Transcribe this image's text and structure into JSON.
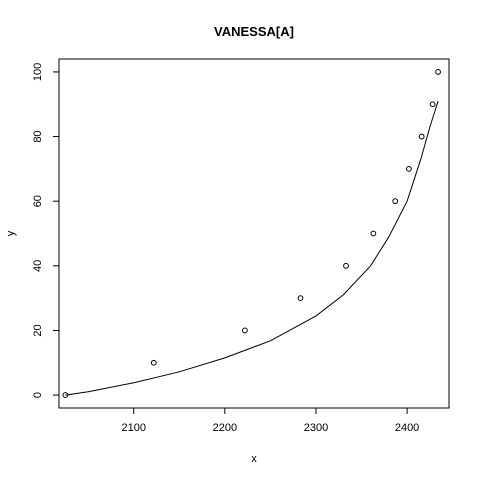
{
  "chart_data": {
    "type": "scatter",
    "title": "VANESSA[A]",
    "xlabel": "x",
    "ylabel": "y",
    "xlim": [
      2018,
      2446
    ],
    "ylim": [
      -4,
      104
    ],
    "x_ticks": [
      "2100",
      "2200",
      "2300",
      "2400"
    ],
    "y_ticks": [
      "0",
      "20",
      "40",
      "60",
      "80",
      "100"
    ],
    "grid": false,
    "legend": "none",
    "series": [
      {
        "kind": "points",
        "x": [
          2025,
          2122,
          2222,
          2283,
          2333,
          2363,
          2387,
          2402,
          2416,
          2428,
          2434
        ],
        "y": [
          0,
          10,
          20,
          30,
          40,
          50,
          60,
          70,
          80,
          90,
          100
        ]
      },
      {
        "kind": "line",
        "x": [
          2025,
          2050,
          2100,
          2150,
          2200,
          2250,
          2300,
          2330,
          2360,
          2380,
          2400,
          2415,
          2425,
          2434
        ],
        "y": [
          0,
          1,
          3.8,
          7.2,
          11.5,
          16.8,
          24.5,
          31,
          40,
          49,
          60,
          73,
          83,
          91
        ]
      }
    ],
    "colors": {
      "ink": "#000000",
      "background": "#ffffff"
    }
  }
}
